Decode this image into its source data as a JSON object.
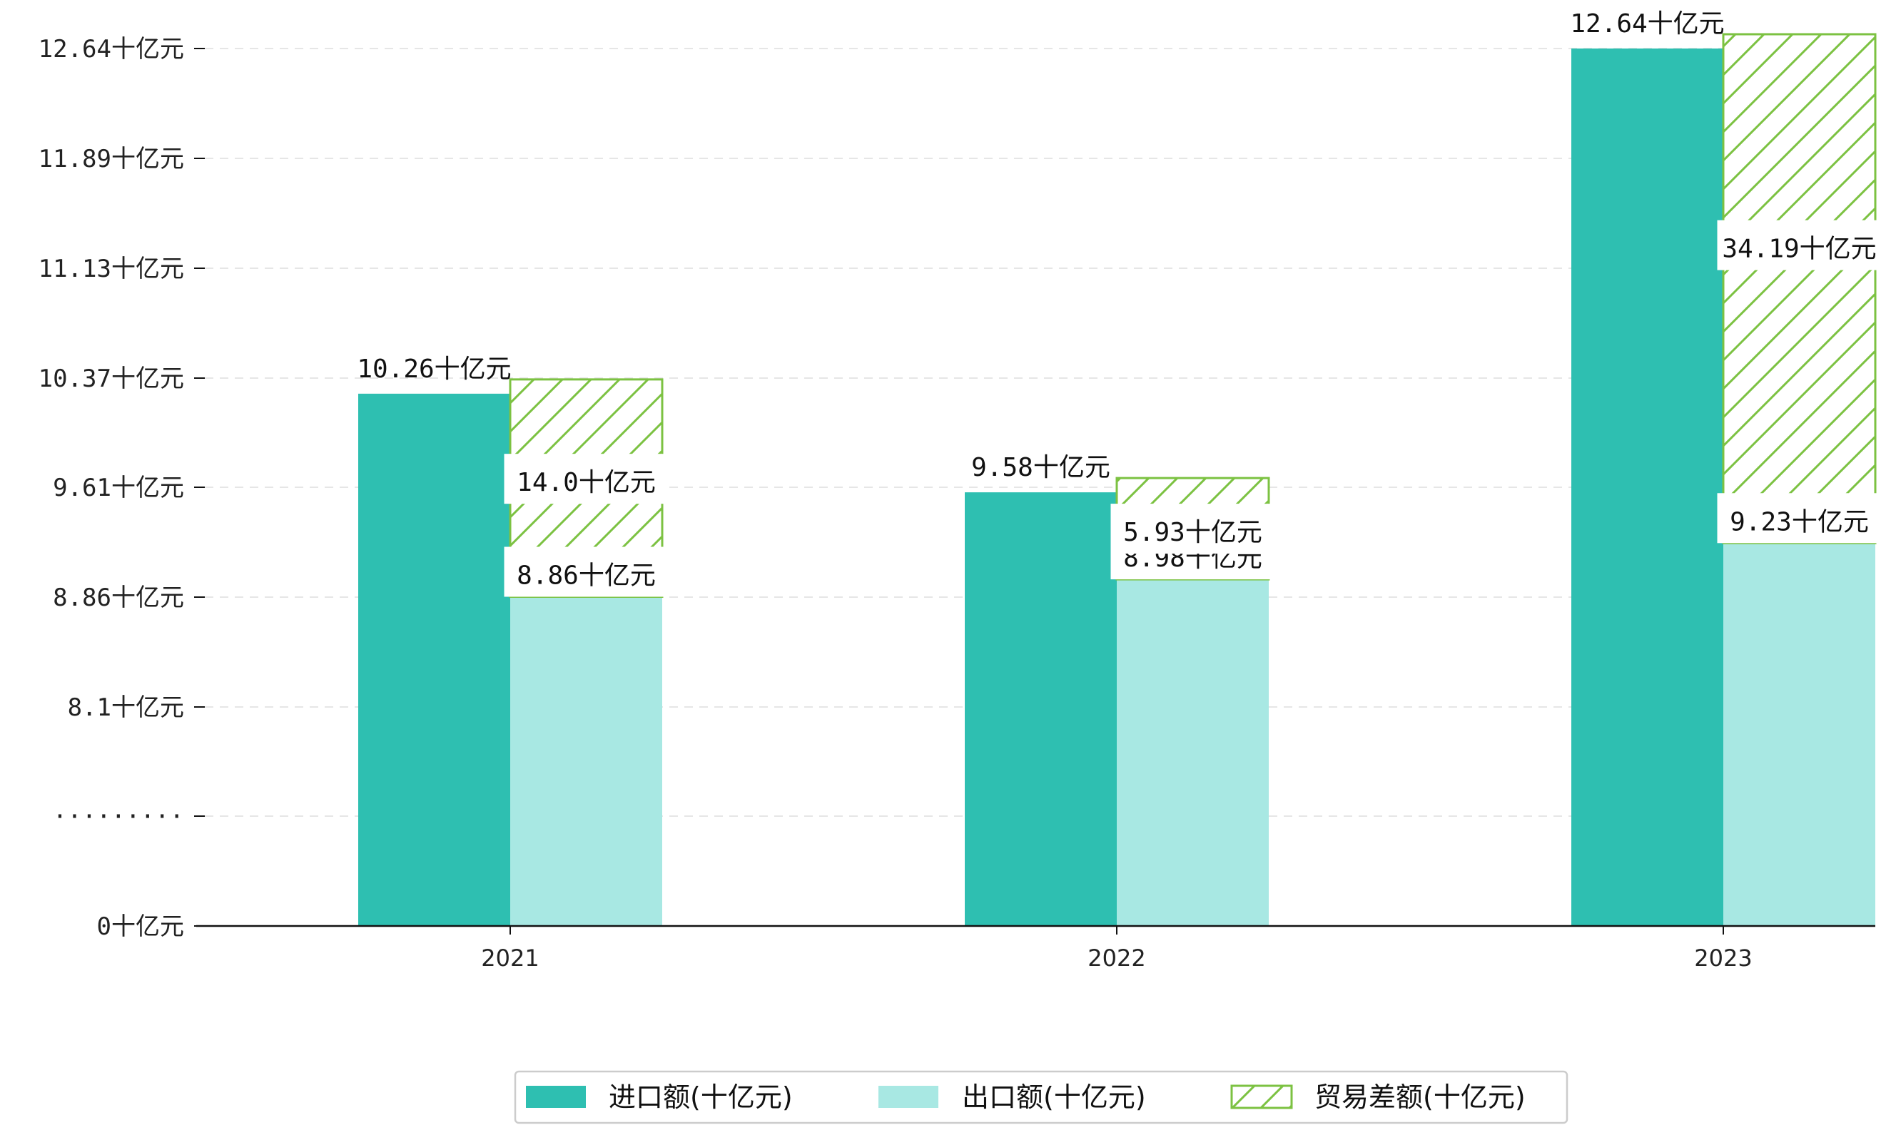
{
  "chart_data": {
    "type": "bar",
    "categories": [
      "2021",
      "2022",
      "2023"
    ],
    "series": [
      {
        "name": "进口额(十亿元)",
        "values": [
          10.26,
          9.58,
          12.64
        ],
        "color": "#2ebfb1"
      },
      {
        "name": "出口额(十亿元)",
        "values": [
          8.86,
          8.98,
          9.23
        ],
        "color": "#a8e8e3"
      },
      {
        "name": "贸易差额(十亿元)",
        "values": [
          14.0,
          5.93,
          34.19
        ],
        "color": "#7cc242",
        "pattern": "hatch"
      }
    ],
    "data_labels": {
      "import": [
        "10.26十亿元",
        "9.58十亿元",
        "12.64十亿元"
      ],
      "export": [
        "8.86十亿元",
        "8.98十亿元",
        "9.23十亿元"
      ],
      "balance": [
        "14.0十亿元",
        "5.93十亿元",
        "34.19十亿元"
      ]
    },
    "yticks": [
      "0十亿元",
      "·········",
      "8.1十亿元",
      "8.86十亿元",
      "9.61十亿元",
      "10.37十亿元",
      "11.13十亿元",
      "11.89十亿元",
      "12.64十亿元"
    ],
    "axis_break": true,
    "grid": "horizontal dashed",
    "legend_position": "bottom-center"
  }
}
